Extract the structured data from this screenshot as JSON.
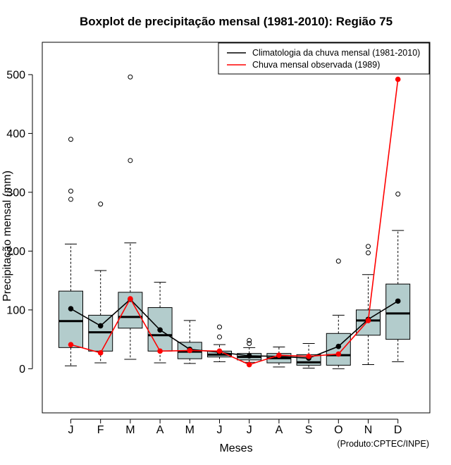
{
  "chart_data": {
    "type": "boxplot",
    "title": "Boxplot de precipitação mensal (1981-2010): Região 75",
    "xlabel": "Meses",
    "ylabel": "Precipitação mensal (mm)",
    "ylim": [
      -75,
      555
    ],
    "yticks": [
      0,
      100,
      200,
      300,
      400,
      500
    ],
    "credit": "(Produto:CPTEC/INPE)",
    "categories": [
      "J",
      "F",
      "M",
      "A",
      "M",
      "J",
      "J",
      "A",
      "S",
      "O",
      "N",
      "D"
    ],
    "boxes": [
      {
        "whisker_low": 5,
        "q1": 36,
        "median": 81,
        "q3": 132,
        "whisker_high": 212,
        "outliers": [
          288,
          302,
          390
        ]
      },
      {
        "whisker_low": 10,
        "q1": 30,
        "median": 62,
        "q3": 91,
        "whisker_high": 167,
        "outliers": [
          280
        ]
      },
      {
        "whisker_low": 16,
        "q1": 69,
        "median": 88,
        "q3": 130,
        "whisker_high": 214,
        "outliers": [
          354,
          496
        ]
      },
      {
        "whisker_low": 10,
        "q1": 30,
        "median": 57,
        "q3": 104,
        "whisker_high": 147,
        "outliers": []
      },
      {
        "whisker_low": 9,
        "q1": 17,
        "median": 29,
        "q3": 45,
        "whisker_high": 82,
        "outliers": []
      },
      {
        "whisker_low": 12,
        "q1": 20,
        "median": 24,
        "q3": 30,
        "whisker_high": 41,
        "outliers": [
          54,
          71
        ]
      },
      {
        "whisker_low": 11,
        "q1": 15,
        "median": 20,
        "q3": 26,
        "whisker_high": 36,
        "outliers": [
          43,
          48
        ]
      },
      {
        "whisker_low": 3,
        "q1": 10,
        "median": 18,
        "q3": 26,
        "whisker_high": 37,
        "outliers": []
      },
      {
        "whisker_low": 1,
        "q1": 6,
        "median": 11,
        "q3": 24,
        "whisker_high": 43,
        "outliers": []
      },
      {
        "whisker_low": 0,
        "q1": 6,
        "median": 23,
        "q3": 60,
        "whisker_high": 91,
        "outliers": [
          183
        ]
      },
      {
        "whisker_low": 7,
        "q1": 57,
        "median": 82,
        "q3": 100,
        "whisker_high": 160,
        "outliers": [
          197,
          208
        ]
      },
      {
        "whisker_low": 12,
        "q1": 50,
        "median": 94,
        "q3": 144,
        "whisker_high": 235,
        "outliers": [
          297
        ]
      }
    ],
    "series": [
      {
        "name": "Climatologia da chuva mensal (1981-2010)",
        "color": "#000000",
        "values": [
          102,
          73,
          118,
          66,
          33,
          28,
          22,
          21,
          18,
          38,
          84,
          115
        ]
      },
      {
        "name": "Chuva mensal observada (1989)",
        "color": "#ff0000",
        "values": [
          41,
          27,
          119,
          30,
          31,
          30,
          7,
          23,
          21,
          25,
          82,
          492
        ]
      }
    ],
    "legend_position": "top-right",
    "box_fill": "#b3cccc"
  }
}
